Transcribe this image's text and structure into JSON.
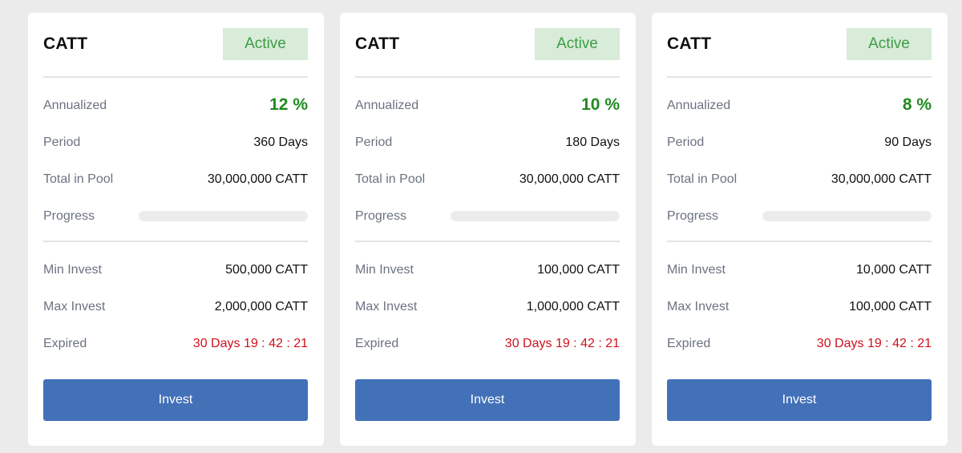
{
  "cards": [
    {
      "title": "CATT",
      "status": "Active",
      "annualized_label": "Annualized",
      "annualized_value": "12 %",
      "period_label": "Period",
      "period_value": "360 Days",
      "pool_label": "Total in Pool",
      "pool_value": "30,000,000 CATT",
      "progress_label": "Progress",
      "progress": 0,
      "min_label": "Min Invest",
      "min_value": "500,000 CATT",
      "max_label": "Max Invest",
      "max_value": "2,000,000 CATT",
      "expired_label": "Expired",
      "expired_value": "30 Days 19 : 42 : 21",
      "button_label": "Invest"
    },
    {
      "title": "CATT",
      "status": "Active",
      "annualized_label": "Annualized",
      "annualized_value": "10 %",
      "period_label": "Period",
      "period_value": "180 Days",
      "pool_label": "Total in Pool",
      "pool_value": "30,000,000 CATT",
      "progress_label": "Progress",
      "progress": 0,
      "min_label": "Min Invest",
      "min_value": "100,000 CATT",
      "max_label": "Max Invest",
      "max_value": "1,000,000 CATT",
      "expired_label": "Expired",
      "expired_value": "30 Days 19 : 42 : 21",
      "button_label": "Invest"
    },
    {
      "title": "CATT",
      "status": "Active",
      "annualized_label": "Annualized",
      "annualized_value": "8 %",
      "period_label": "Period",
      "period_value": "90 Days",
      "pool_label": "Total in Pool",
      "pool_value": "30,000,000 CATT",
      "progress_label": "Progress",
      "progress": 0,
      "min_label": "Min Invest",
      "min_value": "10,000 CATT",
      "max_label": "Max Invest",
      "max_value": "100,000 CATT",
      "expired_label": "Expired",
      "expired_value": "30 Days 19 : 42 : 21",
      "button_label": "Invest"
    }
  ],
  "colors": {
    "accent": "#4271b8",
    "rate": "#1f8a1f",
    "status_bg": "#d8ecd9",
    "status_text": "#3e9b45",
    "expired": "#d0111b"
  }
}
